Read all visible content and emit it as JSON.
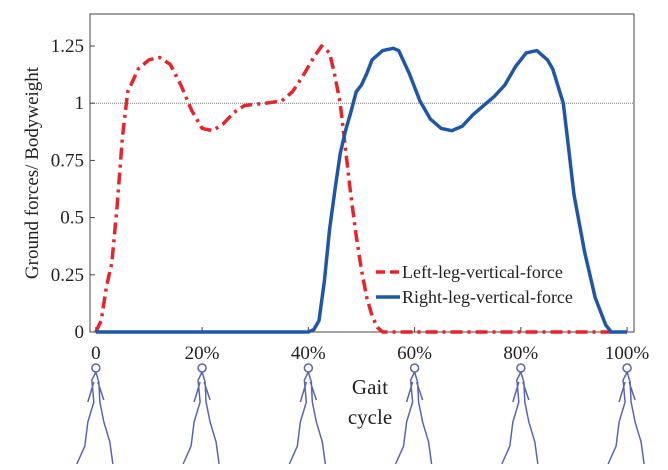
{
  "chart_data": {
    "type": "line",
    "ylabel": "Ground  forces/ Bodyweight",
    "xlabel": "Gait cycle",
    "xlim": [
      -1.1,
      101.3
    ],
    "ylim": [
      0,
      1.39
    ],
    "xticks": [
      0,
      {
        "value": 20,
        "label": "20%"
      },
      {
        "value": 40,
        "label": "40%"
      },
      {
        "value": 60,
        "label": "60%"
      },
      {
        "value": 80,
        "label": "80%"
      },
      {
        "value": 100,
        "label": "100%"
      }
    ],
    "yticks": [
      0,
      0.25,
      0.5,
      0.75,
      1,
      1.25
    ],
    "hline": 1,
    "legend": "lower-right",
    "series": [
      {
        "name": "Left-leg-vertical-force",
        "color": "#e8232a",
        "dash": "12 5 3 5",
        "x": [
          0,
          1,
          2,
          3,
          4,
          5,
          6,
          8,
          10,
          12,
          14,
          16,
          18,
          20,
          22,
          24,
          26,
          28,
          32,
          35,
          37,
          39,
          41,
          42.5,
          44,
          45,
          46,
          47,
          48,
          49,
          50,
          51,
          52,
          53,
          54,
          97
        ],
        "values": [
          0,
          0.05,
          0.2,
          0.3,
          0.55,
          0.85,
          1.05,
          1.15,
          1.19,
          1.2,
          1.17,
          1.08,
          0.97,
          0.89,
          0.88,
          0.91,
          0.96,
          0.99,
          1.0,
          1.01,
          1.05,
          1.12,
          1.2,
          1.25,
          1.22,
          1.12,
          1.0,
          0.8,
          0.6,
          0.42,
          0.27,
          0.15,
          0.07,
          0.02,
          0,
          0
        ]
      },
      {
        "name": "Right-leg-vertical-force",
        "color": "#1e56a8",
        "dash": "",
        "x": [
          0,
          40,
          41,
          42,
          43,
          44,
          45,
          46,
          47,
          48,
          49,
          50,
          51,
          52,
          54,
          56,
          57,
          59,
          61,
          63,
          65,
          67,
          69,
          71,
          73,
          75,
          77,
          79,
          81,
          83,
          85,
          86,
          88,
          89,
          90,
          92,
          94,
          96,
          97,
          100
        ],
        "values": [
          0,
          0,
          0.01,
          0.05,
          0.22,
          0.45,
          0.62,
          0.78,
          0.88,
          0.96,
          1.05,
          1.08,
          1.13,
          1.19,
          1.23,
          1.24,
          1.23,
          1.13,
          1.01,
          0.93,
          0.89,
          0.88,
          0.9,
          0.95,
          0.99,
          1.03,
          1.08,
          1.16,
          1.22,
          1.23,
          1.19,
          1.15,
          1.0,
          0.8,
          0.6,
          0.35,
          0.15,
          0.03,
          0,
          0
        ]
      }
    ]
  }
}
